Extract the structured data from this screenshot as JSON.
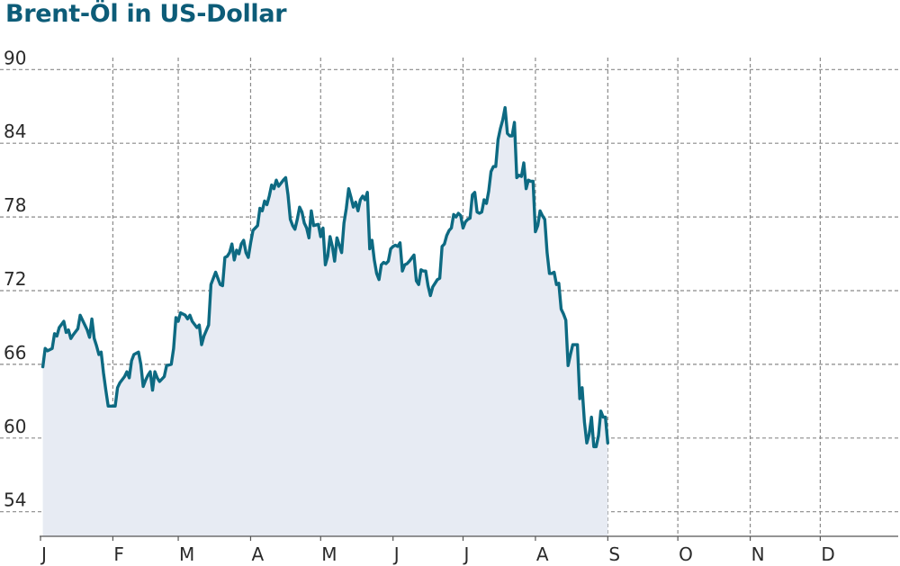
{
  "chart_data": {
    "type": "area",
    "title": "Brent-Öl in US-Dollar",
    "xlabel": "",
    "ylabel": "",
    "ylim": [
      52,
      92
    ],
    "yticks": [
      54,
      60,
      66,
      72,
      78,
      84,
      90
    ],
    "xlim": [
      0,
      367
    ],
    "months": [
      {
        "label": "J",
        "day": 0
      },
      {
        "label": "F",
        "day": 31
      },
      {
        "label": "M",
        "day": 59
      },
      {
        "label": "A",
        "day": 90
      },
      {
        "label": "M",
        "day": 120
      },
      {
        "label": "J",
        "day": 151
      },
      {
        "label": "J",
        "day": 181
      },
      {
        "label": "A",
        "day": 212
      },
      {
        "label": "S",
        "day": 243
      },
      {
        "label": "O",
        "day": 273
      },
      {
        "label": "N",
        "day": 304
      },
      {
        "label": "D",
        "day": 334
      }
    ],
    "grid": true,
    "colors": {
      "line": "#0d6a82",
      "area": "#e7ebf3",
      "title": "#0d5c78"
    },
    "series": [
      {
        "points": [
          [
            1,
            65.8
          ],
          [
            2,
            67.3
          ],
          [
            3,
            67.1
          ],
          [
            5,
            67.3
          ],
          [
            6,
            68.5
          ],
          [
            7,
            68.3
          ],
          [
            8,
            69.0
          ],
          [
            10,
            69.5
          ],
          [
            11,
            68.6
          ],
          [
            12,
            68.8
          ],
          [
            13,
            68.1
          ],
          [
            14,
            68.4
          ],
          [
            16,
            68.9
          ],
          [
            17,
            70.0
          ],
          [
            18,
            69.6
          ],
          [
            19,
            69.2
          ],
          [
            20,
            68.8
          ],
          [
            21,
            68.2
          ],
          [
            22,
            69.7
          ],
          [
            23,
            68.1
          ],
          [
            24,
            67.5
          ],
          [
            25,
            66.8
          ],
          [
            26,
            67.0
          ],
          [
            27,
            65.3
          ],
          [
            28,
            63.9
          ],
          [
            29,
            62.6
          ],
          [
            30,
            62.6
          ],
          [
            32,
            62.6
          ],
          [
            33,
            64.1
          ],
          [
            34,
            64.5
          ],
          [
            36,
            65.0
          ],
          [
            37,
            65.4
          ],
          [
            38,
            64.9
          ],
          [
            39,
            66.3
          ],
          [
            40,
            66.8
          ],
          [
            42,
            67.0
          ],
          [
            43,
            66.0
          ],
          [
            44,
            64.2
          ],
          [
            45,
            64.7
          ],
          [
            46,
            65.1
          ],
          [
            47,
            65.4
          ],
          [
            48,
            63.9
          ],
          [
            49,
            65.4
          ],
          [
            50,
            64.9
          ],
          [
            51,
            64.6
          ],
          [
            53,
            65.0
          ],
          [
            54,
            65.9
          ],
          [
            56,
            66.0
          ],
          [
            57,
            67.3
          ],
          [
            58,
            69.8
          ],
          [
            59,
            69.5
          ],
          [
            60,
            70.2
          ],
          [
            62,
            70.0
          ],
          [
            63,
            69.7
          ],
          [
            64,
            70.0
          ],
          [
            65,
            69.5
          ],
          [
            67,
            69.0
          ],
          [
            68,
            69.2
          ],
          [
            69,
            67.6
          ],
          [
            70,
            68.3
          ],
          [
            72,
            69.2
          ],
          [
            73,
            72.5
          ],
          [
            74,
            73.0
          ],
          [
            75,
            73.5
          ],
          [
            76,
            73.0
          ],
          [
            77,
            72.5
          ],
          [
            78,
            72.4
          ],
          [
            79,
            74.7
          ],
          [
            80,
            74.8
          ],
          [
            81,
            75.1
          ],
          [
            82,
            75.8
          ],
          [
            83,
            74.5
          ],
          [
            84,
            75.3
          ],
          [
            85,
            75.0
          ],
          [
            86,
            75.8
          ],
          [
            87,
            76.1
          ],
          [
            88,
            75.1
          ],
          [
            89,
            74.7
          ],
          [
            90,
            75.9
          ],
          [
            91,
            76.9
          ],
          [
            93,
            77.3
          ],
          [
            94,
            78.7
          ],
          [
            95,
            78.5
          ],
          [
            96,
            79.3
          ],
          [
            97,
            79.0
          ],
          [
            98,
            79.7
          ],
          [
            99,
            80.6
          ],
          [
            100,
            80.3
          ],
          [
            101,
            81.0
          ],
          [
            102,
            80.5
          ],
          [
            104,
            81.0
          ],
          [
            105,
            81.2
          ],
          [
            106,
            79.8
          ],
          [
            107,
            77.8
          ],
          [
            108,
            77.3
          ],
          [
            109,
            77.0
          ],
          [
            110,
            77.8
          ],
          [
            111,
            78.8
          ],
          [
            112,
            78.4
          ],
          [
            113,
            77.5
          ],
          [
            114,
            77.1
          ],
          [
            115,
            76.3
          ],
          [
            116,
            78.5
          ],
          [
            117,
            77.3
          ],
          [
            119,
            77.4
          ],
          [
            120,
            76.4
          ],
          [
            121,
            77.1
          ],
          [
            122,
            74.1
          ],
          [
            123,
            74.8
          ],
          [
            124,
            76.4
          ],
          [
            125,
            75.6
          ],
          [
            126,
            74.4
          ],
          [
            127,
            76.3
          ],
          [
            129,
            75.1
          ],
          [
            130,
            77.5
          ],
          [
            131,
            78.7
          ],
          [
            132,
            80.3
          ],
          [
            133,
            79.6
          ],
          [
            134,
            78.8
          ],
          [
            135,
            79.2
          ],
          [
            136,
            78.5
          ],
          [
            137,
            79.4
          ],
          [
            138,
            79.7
          ],
          [
            139,
            79.4
          ],
          [
            140,
            80.0
          ],
          [
            141,
            75.4
          ],
          [
            142,
            76.1
          ],
          [
            143,
            74.5
          ],
          [
            144,
            73.4
          ],
          [
            145,
            72.9
          ],
          [
            146,
            74.1
          ],
          [
            147,
            74.3
          ],
          [
            148,
            74.2
          ],
          [
            149,
            74.4
          ],
          [
            150,
            75.4
          ],
          [
            151,
            75.6
          ],
          [
            152,
            75.7
          ],
          [
            153,
            75.6
          ],
          [
            154,
            75.9
          ],
          [
            155,
            73.6
          ],
          [
            156,
            74.1
          ],
          [
            157,
            74.2
          ],
          [
            158,
            74.4
          ],
          [
            160,
            74.9
          ],
          [
            161,
            72.8
          ],
          [
            162,
            72.5
          ],
          [
            163,
            73.7
          ],
          [
            164,
            73.6
          ],
          [
            165,
            73.6
          ],
          [
            166,
            72.4
          ],
          [
            167,
            71.6
          ],
          [
            168,
            72.3
          ],
          [
            169,
            72.6
          ],
          [
            170,
            72.9
          ],
          [
            171,
            73.0
          ],
          [
            172,
            75.6
          ],
          [
            173,
            75.8
          ],
          [
            174,
            76.5
          ],
          [
            175,
            76.9
          ],
          [
            176,
            77.1
          ],
          [
            177,
            78.2
          ],
          [
            178,
            78.0
          ],
          [
            179,
            78.3
          ],
          [
            180,
            78.1
          ],
          [
            181,
            77.1
          ],
          [
            182,
            77.6
          ],
          [
            183,
            77.8
          ],
          [
            184,
            77.9
          ],
          [
            185,
            79.8
          ],
          [
            186,
            80.0
          ],
          [
            187,
            78.4
          ],
          [
            188,
            78.3
          ],
          [
            189,
            78.4
          ],
          [
            190,
            79.4
          ],
          [
            191,
            79.1
          ],
          [
            192,
            80.1
          ],
          [
            193,
            81.7
          ],
          [
            194,
            82.1
          ],
          [
            195,
            82.1
          ],
          [
            196,
            84.3
          ],
          [
            197,
            85.2
          ],
          [
            198,
            85.9
          ],
          [
            199,
            86.9
          ],
          [
            200,
            84.8
          ],
          [
            201,
            84.6
          ],
          [
            202,
            84.6
          ],
          [
            203,
            85.7
          ],
          [
            204,
            81.2
          ],
          [
            205,
            81.4
          ],
          [
            206,
            81.3
          ],
          [
            207,
            82.4
          ],
          [
            208,
            80.3
          ],
          [
            209,
            81.0
          ],
          [
            210,
            80.9
          ],
          [
            211,
            80.9
          ],
          [
            212,
            76.8
          ],
          [
            213,
            77.3
          ],
          [
            214,
            78.5
          ],
          [
            215,
            78.1
          ],
          [
            216,
            77.8
          ],
          [
            217,
            75.1
          ],
          [
            218,
            73.4
          ],
          [
            219,
            73.4
          ],
          [
            220,
            73.5
          ],
          [
            221,
            72.5
          ],
          [
            222,
            72.6
          ],
          [
            223,
            70.5
          ],
          [
            224,
            70.1
          ],
          [
            225,
            69.6
          ],
          [
            226,
            65.9
          ],
          [
            227,
            66.8
          ],
          [
            228,
            67.6
          ],
          [
            229,
            67.6
          ],
          [
            230,
            67.6
          ],
          [
            231,
            63.2
          ],
          [
            232,
            64.1
          ],
          [
            233,
            61.3
          ],
          [
            234,
            59.6
          ],
          [
            235,
            60.3
          ],
          [
            236,
            61.7
          ],
          [
            237,
            59.3
          ],
          [
            238,
            59.3
          ],
          [
            239,
            60.2
          ],
          [
            240,
            62.2
          ],
          [
            241,
            61.7
          ],
          [
            242,
            61.7
          ],
          [
            243,
            59.6
          ]
        ]
      }
    ]
  }
}
